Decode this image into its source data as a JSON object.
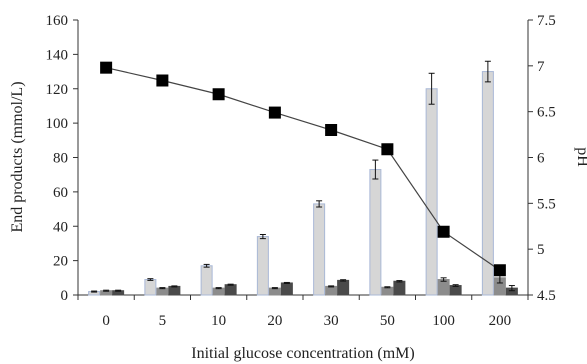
{
  "chart_data": {
    "type": "bar",
    "title": "",
    "xlabel": "Initial glucose concentration (mM)",
    "ylabel": "End products (mmol/L)",
    "y2label": "pH",
    "categories": [
      "0",
      "5",
      "10",
      "20",
      "30",
      "50",
      "100",
      "200"
    ],
    "ylim": [
      0,
      160
    ],
    "yticks": [
      "0",
      "20",
      "40",
      "60",
      "80",
      "100",
      "120",
      "140",
      "160"
    ],
    "y2lim": [
      4.5,
      7.5
    ],
    "y2ticks": [
      "4.5",
      "5",
      "5.5",
      "6",
      "6.5",
      "7",
      "7.5"
    ],
    "grid": false,
    "series": [
      {
        "kind": "bar",
        "color": "#d6d6d6",
        "edge": "#a9b8d6",
        "values": [
          2,
          9,
          17,
          34,
          53,
          73,
          120,
          130
        ],
        "errors": [
          0.3,
          0.5,
          0.8,
          1.2,
          1.8,
          5.5,
          9,
          6
        ]
      },
      {
        "kind": "bar",
        "color": "#8c8c8c",
        "edge": "#8c8c8c",
        "values": [
          2.5,
          4,
          4,
          4,
          5,
          4.5,
          9,
          10
        ],
        "errors": [
          0.3,
          0.3,
          0.3,
          0.3,
          0.3,
          0.3,
          1,
          3
        ]
      },
      {
        "kind": "bar",
        "color": "#4a4a4a",
        "edge": "#4a4a4a",
        "values": [
          2.5,
          5,
          6,
          7,
          8.5,
          8,
          5.5,
          4
        ],
        "errors": [
          0.3,
          0.3,
          0.3,
          0.3,
          0.4,
          0.4,
          0.5,
          1.5
        ]
      },
      {
        "kind": "line",
        "axis": "right",
        "color": "#000000",
        "values": [
          6.98,
          6.84,
          6.69,
          6.49,
          6.3,
          6.09,
          5.19,
          4.77
        ]
      }
    ]
  }
}
